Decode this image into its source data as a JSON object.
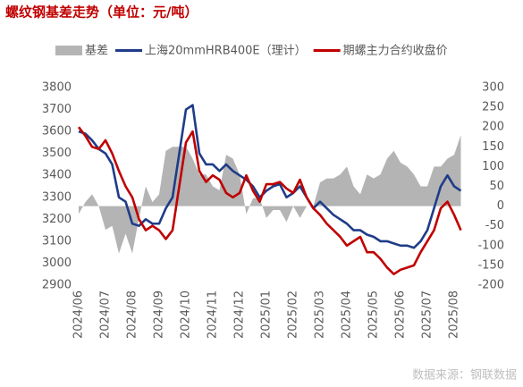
{
  "chart_data": {
    "type": "line",
    "title": "螺纹钢基差走势（单位：元/吨）",
    "source": "数据来源：钢联数据",
    "categories": [
      "2024/06",
      null,
      null,
      null,
      "2024/07",
      null,
      null,
      null,
      "2024/08",
      null,
      null,
      null,
      "2024/09",
      null,
      null,
      null,
      "2024/10",
      null,
      null,
      null,
      "2024/11",
      null,
      null,
      null,
      "2024/12",
      null,
      null,
      null,
      "2025/01",
      null,
      null,
      null,
      "2025/02",
      null,
      null,
      null,
      "2025/03",
      null,
      null,
      null,
      "2025/04",
      null,
      null,
      null,
      "2025/05",
      null,
      null,
      null,
      "2025/06",
      null,
      null,
      null,
      "2025/07",
      null,
      null,
      null,
      "2025/08",
      null
    ],
    "series": [
      {
        "name": "基差",
        "color": "#b4b4b4",
        "axis": "y2",
        "kind": "area",
        "values": [
          -20,
          10,
          30,
          0,
          -60,
          -50,
          -120,
          -70,
          -120,
          -30,
          50,
          10,
          30,
          140,
          150,
          150,
          150,
          120,
          80,
          80,
          50,
          40,
          130,
          120,
          80,
          -20,
          20,
          20,
          -30,
          -10,
          -10,
          -40,
          0,
          -30,
          0,
          0,
          60,
          70,
          70,
          80,
          100,
          50,
          30,
          80,
          70,
          80,
          120,
          140,
          110,
          100,
          80,
          50,
          50,
          100,
          100,
          120,
          130,
          180
        ]
      },
      {
        "name": "上海20mmHRB400E（理计）",
        "color": "#1f3c88",
        "kind": "line",
        "values": [
          3600,
          3590,
          3560,
          3520,
          3500,
          3450,
          3300,
          3280,
          3180,
          3170,
          3200,
          3180,
          3180,
          3250,
          3300,
          3500,
          3700,
          3720,
          3500,
          3450,
          3450,
          3420,
          3450,
          3420,
          3400,
          3380,
          3350,
          3300,
          3330,
          3350,
          3360,
          3300,
          3320,
          3350,
          3300,
          3250,
          3280,
          3250,
          3220,
          3200,
          3180,
          3150,
          3150,
          3130,
          3120,
          3100,
          3100,
          3090,
          3080,
          3080,
          3070,
          3100,
          3150,
          3250,
          3350,
          3400,
          3350,
          3330
        ]
      },
      {
        "name": "期螺主力合约收盘价",
        "color": "#c00000",
        "kind": "line",
        "values": [
          3620,
          3580,
          3530,
          3520,
          3560,
          3500,
          3420,
          3350,
          3300,
          3200,
          3150,
          3170,
          3150,
          3110,
          3150,
          3350,
          3550,
          3600,
          3420,
          3370,
          3400,
          3380,
          3320,
          3300,
          3320,
          3400,
          3330,
          3280,
          3360,
          3360,
          3370,
          3340,
          3320,
          3380,
          3300,
          3250,
          3220,
          3180,
          3150,
          3120,
          3080,
          3100,
          3120,
          3050,
          3050,
          3020,
          2980,
          2950,
          2970,
          2980,
          2990,
          3050,
          3100,
          3150,
          3250,
          3280,
          3220,
          3150
        ]
      }
    ],
    "ylim": [
      2900,
      3800
    ],
    "yticks": [
      2900,
      3000,
      3100,
      3200,
      3300,
      3400,
      3500,
      3600,
      3700,
      3800
    ],
    "y2lim": [
      -200,
      300
    ],
    "y2ticks": [
      -200,
      -150,
      -100,
      -50,
      0,
      50,
      100,
      150,
      200,
      250,
      300
    ]
  }
}
